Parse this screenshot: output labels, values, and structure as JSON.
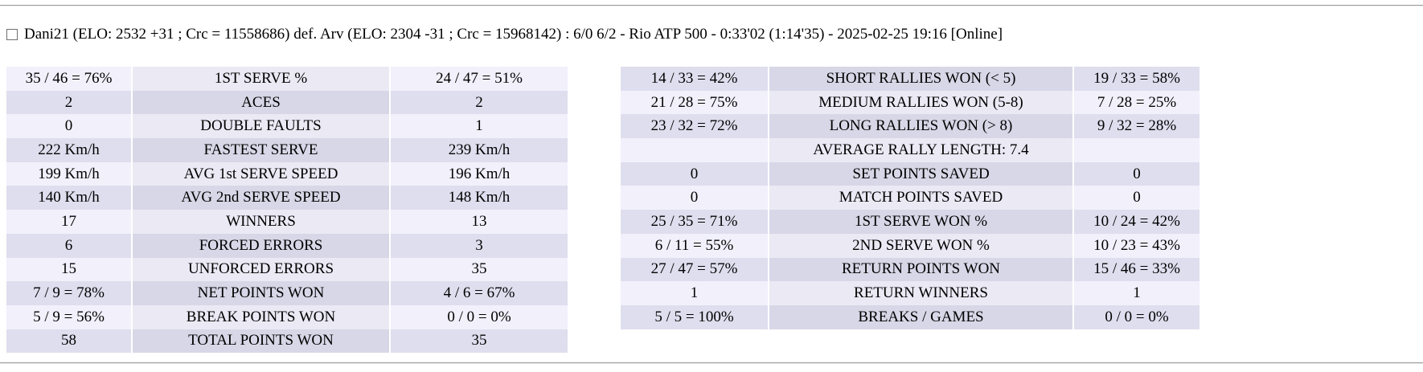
{
  "match_header": {
    "checkbox_checked": false,
    "text": "Dani21 (ELO: 2532 +31 ; Crc = 11558686) def. Arv (ELO: 2304 -31 ; Crc = 15968142) : 6/0 6/2 - Rio ATP 500 - 0:33'02 (1:14'35) - 2025-02-25 19:16 [Online]"
  },
  "colors": {
    "row_light_value": "#f1f0fb",
    "row_light_label": "#eae9f4",
    "row_dark_value": "#dfdeee",
    "row_dark_label": "#d8d7e7",
    "divider": "#9b9b9b",
    "text": "#000000"
  },
  "left_table": {
    "first_row_shade": "light",
    "rows": [
      {
        "p1": "35 / 46 = 76%",
        "label": "1ST SERVE %",
        "p2": "24 / 47 = 51%"
      },
      {
        "p1": "2",
        "label": "ACES",
        "p2": "2"
      },
      {
        "p1": "0",
        "label": "DOUBLE FAULTS",
        "p2": "1"
      },
      {
        "p1": "222 Km/h",
        "label": "FASTEST SERVE",
        "p2": "239 Km/h"
      },
      {
        "p1": "199 Km/h",
        "label": "AVG 1st SERVE SPEED",
        "p2": "196 Km/h"
      },
      {
        "p1": "140 Km/h",
        "label": "AVG 2nd SERVE SPEED",
        "p2": "148 Km/h"
      },
      {
        "p1": "17",
        "label": "WINNERS",
        "p2": "13"
      },
      {
        "p1": "6",
        "label": "FORCED ERRORS",
        "p2": "3"
      },
      {
        "p1": "15",
        "label": "UNFORCED ERRORS",
        "p2": "35"
      },
      {
        "p1": "7 / 9 = 78%",
        "label": "NET POINTS WON",
        "p2": "4 / 6 = 67%"
      },
      {
        "p1": "5 / 9 = 56%",
        "label": "BREAK POINTS WON",
        "p2": "0 / 0 = 0%"
      },
      {
        "p1": "58",
        "label": "TOTAL POINTS WON",
        "p2": "35"
      }
    ]
  },
  "right_table": {
    "first_row_shade": "dark",
    "rows": [
      {
        "p1": "14 / 33 = 42%",
        "label": "SHORT RALLIES WON (< 5)",
        "p2": "19 / 33 = 58%"
      },
      {
        "p1": "21 / 28 = 75%",
        "label": "MEDIUM RALLIES WON (5-8)",
        "p2": "7 / 28 = 25%"
      },
      {
        "p1": "23 / 32 = 72%",
        "label": "LONG RALLIES WON (> 8)",
        "p2": "9 / 32 = 28%"
      },
      {
        "p1": "",
        "label": "AVERAGE RALLY LENGTH: 7.4",
        "p2": ""
      },
      {
        "p1": "0",
        "label": "SET POINTS SAVED",
        "p2": "0"
      },
      {
        "p1": "0",
        "label": "MATCH POINTS SAVED",
        "p2": "0"
      },
      {
        "p1": "25 / 35 = 71%",
        "label": "1ST SERVE WON %",
        "p2": "10 / 24 = 42%"
      },
      {
        "p1": "6 / 11 = 55%",
        "label": "2ND SERVE WON %",
        "p2": "10 / 23 = 43%"
      },
      {
        "p1": "27 / 47 = 57%",
        "label": "RETURN POINTS WON",
        "p2": "15 / 46 = 33%"
      },
      {
        "p1": "1",
        "label": "RETURN WINNERS",
        "p2": "1"
      },
      {
        "p1": "5 / 5 = 100%",
        "label": "BREAKS / GAMES",
        "p2": "0 / 0 = 0%"
      }
    ]
  }
}
